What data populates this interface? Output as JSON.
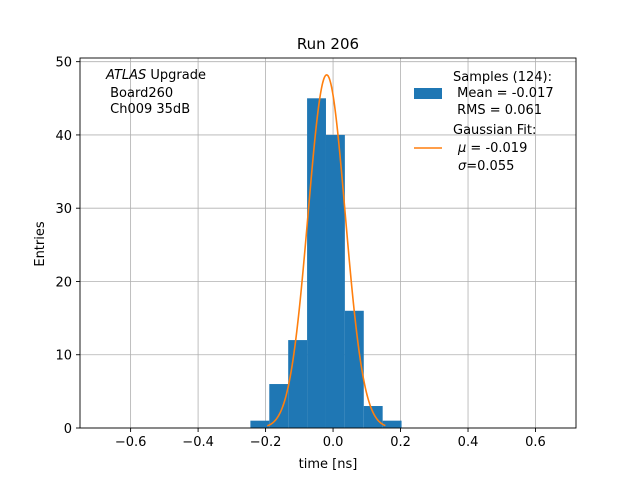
{
  "chart_data": {
    "type": "bar",
    "title": "Run 206",
    "xlabel": "time [ns]",
    "ylabel": "Entries",
    "xlim": [
      -0.75,
      0.72
    ],
    "ylim": [
      0,
      50.5
    ],
    "grid": true,
    "xticks": [
      -0.6,
      -0.4,
      -0.2,
      0.0,
      0.2,
      0.4,
      0.6
    ],
    "xtick_labels": [
      "−0.6",
      "−0.4",
      "−0.2",
      "0.0",
      "0.2",
      "0.4",
      "0.6"
    ],
    "yticks": [
      0,
      10,
      20,
      30,
      40,
      50
    ],
    "ytick_labels": [
      "0",
      "10",
      "20",
      "30",
      "40",
      "50"
    ],
    "histogram": {
      "name": "Samples",
      "color": "#1f77b4",
      "bin_edges": [
        -0.245,
        -0.189,
        -0.133,
        -0.077,
        -0.021,
        0.035,
        0.091,
        0.147,
        0.203
      ],
      "counts": [
        1,
        6,
        12,
        45,
        40,
        16,
        3,
        1
      ]
    },
    "fit": {
      "name": "Gaussian Fit",
      "color": "#ff7f0e",
      "mu": -0.019,
      "sigma": 0.055,
      "amplitude": 48.2,
      "x_range": [
        -0.195,
        0.155
      ]
    },
    "annotation": {
      "line1_italic": "ATLAS",
      "line1_rest": " Upgrade",
      "line2": " Board260",
      "line3": " Ch009 35dB"
    },
    "legend": {
      "location": "top-right",
      "samples_line1": "Samples (124):",
      "samples_line2": " Mean = -0.017",
      "samples_line3": " RMS = 0.061",
      "fit_line1": "Gaussian Fit:",
      "fit_line2_sym": "μ",
      "fit_line2_rest": " = -0.019",
      "fit_line3_sym": "σ",
      "fit_line3_rest": "=0.055"
    }
  }
}
